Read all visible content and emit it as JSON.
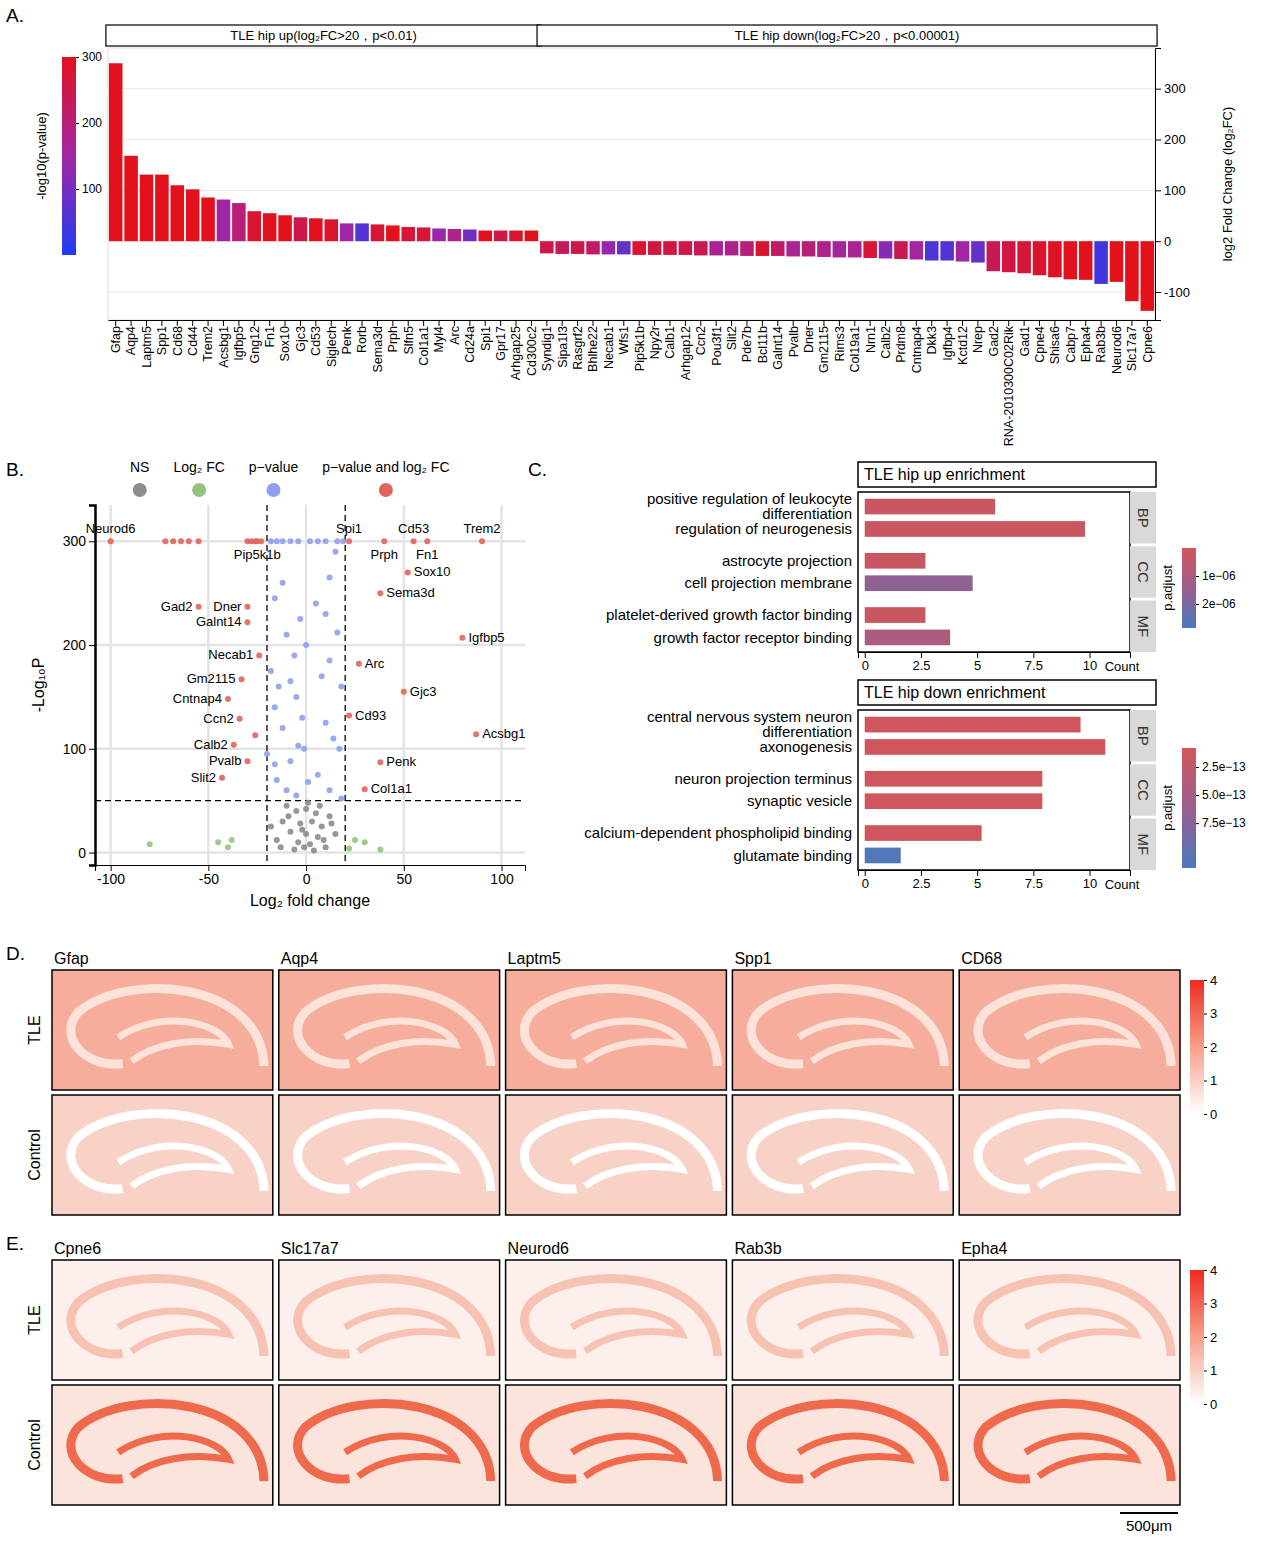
{
  "chart_data": [
    {
      "panel": "A.",
      "type": "bar",
      "categories": [
        "Gfap",
        "Aqp4",
        "Laptm5",
        "Spp1",
        "Cd68",
        "Cd44",
        "Trem2",
        "Acsbg1",
        "Igfbp5",
        "Gng12",
        "Fn1",
        "Sox10",
        "Gjc3",
        "Cd53",
        "Siglech",
        "Penk",
        "Rorb",
        "Sema3d",
        "Prph",
        "Slfn5",
        "Col1a1",
        "Myl4",
        "Arc",
        "Cd24a",
        "Spi1",
        "Gpr17",
        "Arhgap25",
        "Cd300c2",
        "Syndig1",
        "Sipa1l3",
        "Rasgrf2",
        "Bhlhe22",
        "Necab1",
        "Wfs1",
        "Pip5k1b",
        "Npy2r",
        "Calb1",
        "Arhgap12",
        "Ccn2",
        "Pou3f1",
        "Slit2",
        "Pde7b",
        "Bcl11b",
        "Galnt14",
        "Pvalb",
        "Dner",
        "Gm2115",
        "Rims3",
        "Col19a1",
        "Nrn1",
        "Calb2",
        "Prdm8",
        "Cntnap4",
        "Dkk3",
        "Igfbp4",
        "Kctd12",
        "Nrep",
        "Gad2",
        "RNA-2010300C02Rik",
        "Gad1",
        "Cpne4",
        "Shisa6",
        "Cabp7",
        "Epha4",
        "Rab3b",
        "Neurod6",
        "Slc17a7",
        "Cpne6"
      ],
      "series": [
        {
          "name": "TLE hip up(log₂FC>20，p<0.01)",
          "values": [
            350,
            168,
            131,
            131,
            110,
            102,
            86,
            82,
            75,
            59,
            55,
            51,
            47,
            45,
            43,
            35,
            35,
            33,
            31,
            28,
            27,
            25,
            24,
            23,
            21,
            21,
            21,
            21,
            null,
            null,
            null,
            null,
            null,
            null,
            null,
            null,
            null,
            null,
            null,
            null,
            null,
            null,
            null,
            null,
            null,
            null,
            null,
            null,
            null,
            null,
            null,
            null,
            null,
            null,
            null,
            null,
            null,
            null,
            null,
            null,
            null,
            null,
            null,
            null,
            null,
            null,
            null,
            null
          ],
          "neglog10p": [
            300,
            300,
            300,
            300,
            300,
            300,
            300,
            150,
            200,
            280,
            300,
            300,
            250,
            300,
            280,
            150,
            60,
            270,
            300,
            270,
            270,
            140,
            180,
            100,
            300,
            250,
            280,
            300,
            null,
            null,
            null,
            null,
            null,
            null,
            null,
            null,
            null,
            null,
            null,
            null,
            null,
            null,
            null,
            null,
            null,
            null,
            null,
            null,
            null,
            null,
            null,
            null,
            null,
            null,
            null,
            null,
            null,
            null,
            null,
            null,
            null,
            null,
            null,
            null,
            null,
            null,
            null,
            null
          ]
        },
        {
          "name": "TLE hip down(log₂FC>20，p<0.00001)",
          "values": [
            null,
            null,
            null,
            null,
            null,
            null,
            null,
            null,
            null,
            null,
            null,
            null,
            null,
            null,
            null,
            null,
            null,
            null,
            null,
            null,
            null,
            null,
            null,
            null,
            null,
            null,
            null,
            null,
            -24,
            -25,
            -25,
            -26,
            -26,
            -26,
            -27,
            -27,
            -27,
            -27,
            -28,
            -28,
            -28,
            -29,
            -29,
            -29,
            -30,
            -30,
            -31,
            -32,
            -32,
            -33,
            -34,
            -35,
            -36,
            -38,
            -38,
            -40,
            -42,
            -59,
            -61,
            -63,
            -67,
            -71,
            -75,
            -76,
            -84,
            -80,
            -118,
            -137
          ],
          "neglog10p": [
            null,
            null,
            null,
            null,
            null,
            null,
            null,
            null,
            null,
            null,
            null,
            null,
            null,
            null,
            null,
            null,
            null,
            null,
            null,
            null,
            null,
            null,
            null,
            null,
            null,
            null,
            null,
            null,
            250,
            230,
            250,
            220,
            140,
            80,
            280,
            260,
            260,
            250,
            240,
            170,
            180,
            200,
            280,
            220,
            170,
            200,
            180,
            160,
            170,
            270,
            120,
            240,
            160,
            50,
            60,
            150,
            80,
            240,
            260,
            270,
            280,
            290,
            300,
            300,
            40,
            300,
            300,
            300
          ]
        }
      ],
      "y_label": "log2 Fold Change (log₂FC)",
      "ylim": [
        -155,
        380
      ],
      "yticks": [
        -100,
        0,
        100,
        200,
        300
      ],
      "grid": true,
      "colorbar": {
        "label": "-log10(p-value)",
        "range": [
          0,
          300
        ],
        "ticks": [
          100,
          200,
          300
        ]
      }
    },
    {
      "panel": "B.",
      "type": "scatter",
      "x_label": "Log₂ fold change",
      "y_label": "-Log₁₀P",
      "xlim": [
        -108,
        112
      ],
      "xticks": [
        -100,
        -50,
        0,
        50,
        100
      ],
      "ylim": [
        -12,
        335
      ],
      "yticks": [
        0,
        100,
        200,
        300
      ],
      "thresholds": {
        "x": [
          -20,
          20
        ],
        "y": 50
      },
      "legend": "top",
      "grid": true,
      "series": [
        {
          "name": "NS",
          "color": "#8c8c8c",
          "x": [
            -10,
            -5,
            0,
            5,
            -12,
            -3,
            3,
            8,
            -8,
            0,
            6,
            -15,
            -4,
            2,
            10,
            -6,
            4,
            -2,
            12,
            -18,
            15,
            1,
            -9,
            7,
            -1,
            9,
            -13,
            13
          ],
          "y": [
            45,
            40,
            42,
            38,
            30,
            28,
            30,
            25,
            20,
            18,
            15,
            12,
            10,
            8,
            5,
            3,
            2,
            22,
            35,
            25,
            18,
            48,
            35,
            45,
            5,
            12,
            5,
            28
          ]
        },
        {
          "name": "Log₂ FC",
          "color": "#93c47d",
          "x": [
            -80,
            -45,
            -40,
            -38,
            25,
            22,
            30,
            38
          ],
          "y": [
            8,
            10,
            5,
            12,
            12,
            4,
            10,
            3
          ]
        },
        {
          "name": "p−value",
          "color": "#8fa0ee",
          "x": [
            -18,
            -15,
            -12,
            -8,
            -4,
            2,
            6,
            10,
            16,
            19,
            15,
            -12,
            -16,
            12,
            5,
            -3,
            10,
            -10,
            16,
            0,
            -6,
            -18,
            -14,
            -8,
            -5,
            12,
            8,
            18,
            -16,
            -2,
            10,
            -12,
            -4,
            -1,
            14,
            17,
            -20,
            -16,
            -8,
            -15,
            -10,
            6,
            12,
            18,
            -5,
            1
          ],
          "y": [
            300,
            300,
            300,
            300,
            300,
            300,
            300,
            300,
            300,
            300,
            290,
            260,
            245,
            265,
            240,
            225,
            230,
            210,
            212,
            200,
            190,
            175,
            160,
            165,
            150,
            185,
            170,
            160,
            140,
            130,
            125,
            120,
            103,
            100,
            110,
            100,
            95,
            85,
            88,
            70,
            60,
            75,
            60,
            52,
            55,
            68
          ]
        },
        {
          "name": "p−value and log₂ FC",
          "color": "#e2635c",
          "x": [
            -100,
            -72,
            -68,
            -64,
            -60,
            -55,
            -30,
            -28,
            -26,
            -25,
            -23,
            22,
            40,
            55,
            62,
            90,
            52,
            38,
            -30,
            -55,
            -30,
            80,
            -24,
            27,
            -33,
            50,
            -40,
            22,
            -34,
            -26,
            87,
            -37,
            -30,
            -43,
            38,
            30
          ],
          "y": [
            300,
            300,
            300,
            300,
            300,
            300,
            300,
            300,
            300,
            300,
            300,
            300,
            300,
            300,
            300,
            300,
            270,
            250,
            237,
            237,
            222,
            207,
            190,
            182,
            167,
            155,
            148,
            132,
            129,
            113,
            114,
            104,
            88,
            72,
            87,
            61
          ],
          "labels": [
            "Neurod6",
            null,
            null,
            null,
            null,
            null,
            null,
            null,
            null,
            "Pip5k1b",
            null,
            "Spi1",
            "Prph",
            "Cd53",
            "Fn1",
            "Trem2",
            "Sox10",
            "Sema3d",
            "Dner",
            "Gad2",
            "Galnt14",
            "Igfbp5",
            "Necab1",
            "Arc",
            "Gm2115",
            "Gjc3",
            "Cntnap4",
            "Cd93",
            "Ccn2",
            null,
            "Acsbg1",
            "Calb2",
            "Pvalb",
            "Slit2",
            "Penk",
            "Col1a1"
          ]
        }
      ]
    },
    {
      "panel": "C.",
      "type": "bar",
      "orientation": "horizontal",
      "title": "TLE hip up enrichment",
      "categories": [
        "positive regulation of leukocyte differentiation",
        "regulation of neurogenesis",
        "astrocyte projection",
        "cell projection membrane",
        "platelet-derived growth factor binding",
        "growth factor receptor binding"
      ],
      "facets": [
        "BP",
        "BP",
        "CC",
        "CC",
        "MF",
        "MF"
      ],
      "values": [
        5.8,
        9.8,
        2.7,
        4.8,
        2.7,
        3.8
      ],
      "p_adjust": [
        2e-07,
        2e-07,
        2e-07,
        1.6e-06,
        2e-07,
        1e-06
      ],
      "x_label": "Count",
      "xlim": [
        -0.3,
        11.8
      ],
      "xticks": [
        0,
        2.5,
        5,
        7.5,
        10
      ],
      "colorbar": {
        "label": "p.adjust",
        "range": [
          0,
          2.86e-06
        ],
        "ticks": [
          {
            "value": 1e-06,
            "label": "1e−06"
          },
          {
            "value": 2e-06,
            "label": "2e−06"
          }
        ]
      }
    },
    {
      "type": "bar",
      "orientation": "horizontal",
      "title": "TLE hip down enrichment",
      "categories": [
        "central nervous system neuron differentiation",
        "axonogenesis",
        "neuron projection terminus",
        "synaptic vesicle",
        "calcium-dependent phospholipid binding",
        "glutamate binding"
      ],
      "facets": [
        "BP",
        "BP",
        "CC",
        "CC",
        "MF",
        "MF"
      ],
      "values": [
        9.6,
        10.7,
        7.9,
        7.9,
        5.2,
        1.6
      ],
      "p_adjust": [
        1e-13,
        1e-13,
        1e-13,
        1e-13,
        1e-13,
        1.1e-12
      ],
      "x_label": "Count",
      "xlim": [
        -0.3,
        11.8
      ],
      "xticks": [
        0,
        2.5,
        5,
        7.5,
        10
      ],
      "colorbar": {
        "label": "p.adjust",
        "range": [
          8e-14,
          1.15e-12
        ],
        "ticks": [
          {
            "value": 2.5e-13,
            "label": "2.5e−13"
          },
          {
            "value": 5e-13,
            "label": "5.0e−13"
          },
          {
            "value": 7.5e-13,
            "label": "7.5e−13"
          }
        ]
      }
    },
    {
      "panel": "D.",
      "type": "spatial",
      "genes": [
        "Gfap",
        "Aqp4",
        "Laptm5",
        "Spp1",
        "CD68"
      ],
      "rows": [
        "TLE",
        "Control"
      ],
      "colorbar": {
        "range": [
          0,
          4
        ],
        "ticks": [
          0,
          1,
          2,
          3,
          4
        ]
      }
    },
    {
      "panel": "E.",
      "type": "spatial",
      "genes": [
        "Cpne6",
        "Slc17a7",
        "Neurod6",
        "Rab3b",
        "Epha4"
      ],
      "rows": [
        "TLE",
        "Control"
      ],
      "colorbar": {
        "range": [
          0,
          4
        ],
        "ticks": [
          0,
          1,
          2,
          3,
          4
        ]
      },
      "scale_bar": "500μm"
    }
  ]
}
